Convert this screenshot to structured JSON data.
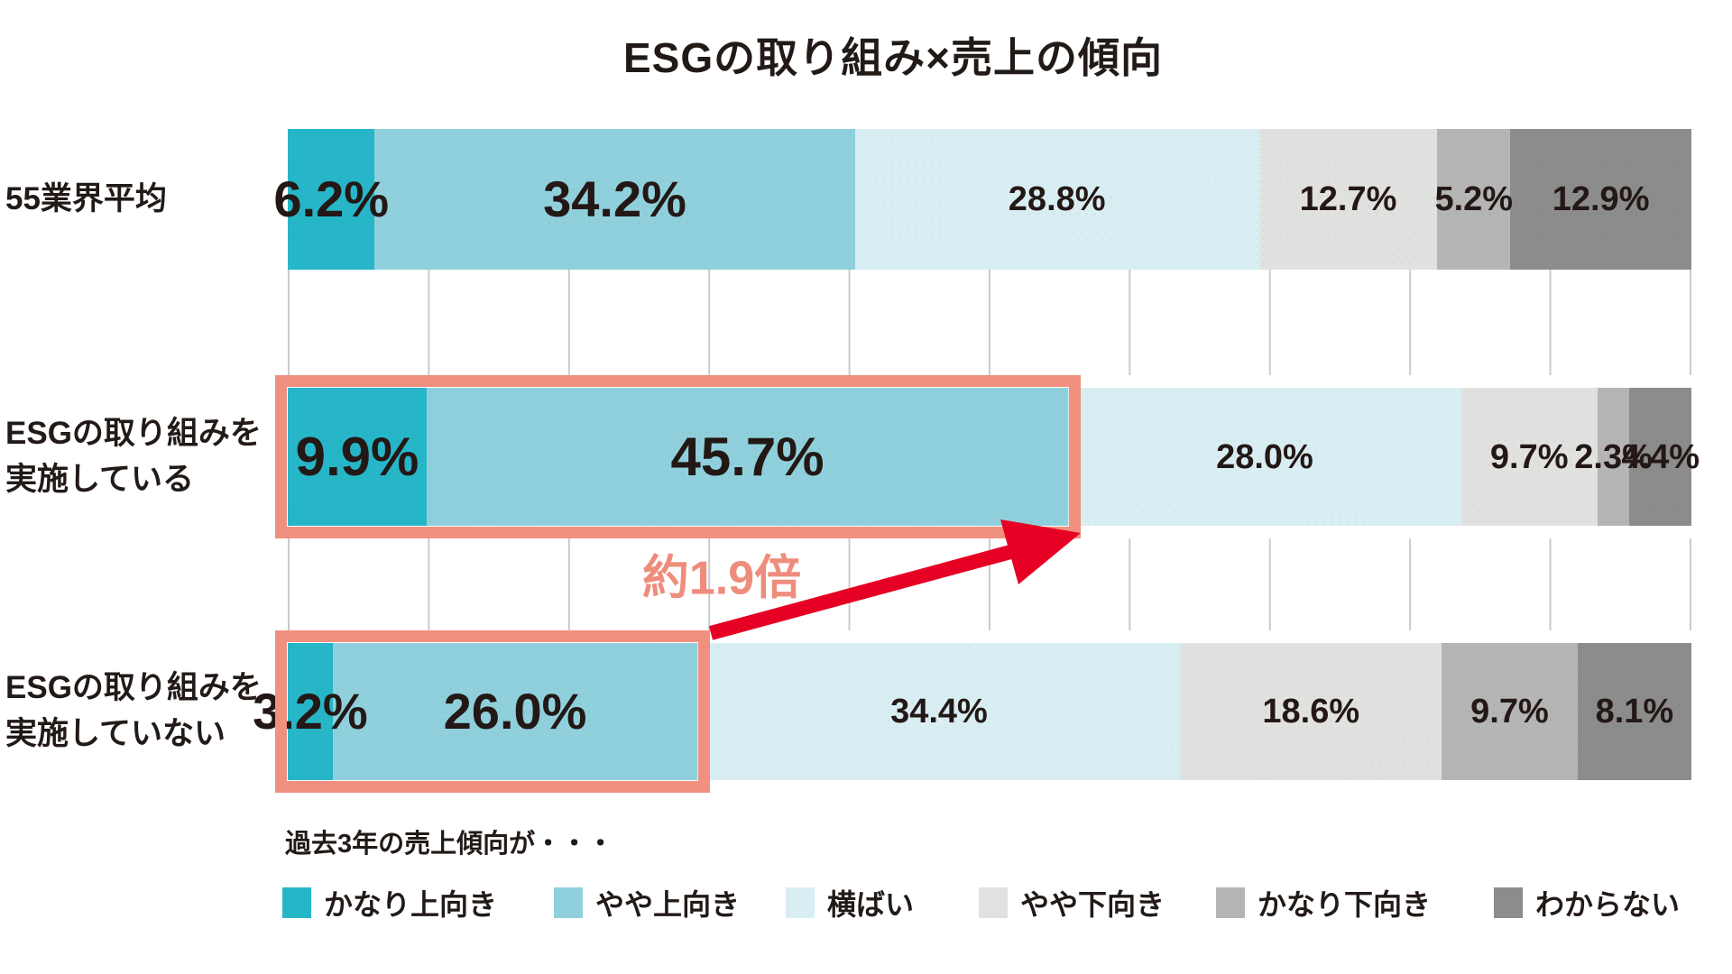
{
  "title": "ESGの取り組み×売上の傾向",
  "chart_data": {
    "type": "bar",
    "stacked": true,
    "orientation": "horizontal",
    "unit": "%",
    "xlim": [
      0,
      100
    ],
    "gridline_step_percent": 10,
    "legend_position": "bottom",
    "categories": [
      "55業界平均",
      "ESGの取り組みを実施している",
      "ESGの取り組みを実施していない"
    ],
    "series": [
      {
        "name": "かなり上向き",
        "color": "#26b6c8",
        "values": [
          6.2,
          9.9,
          3.2
        ]
      },
      {
        "name": "やや上向き",
        "color": "#8fd0dc",
        "values": [
          34.2,
          45.7,
          26.0
        ]
      },
      {
        "name": "横ばい",
        "color": "#d9eef3",
        "values": [
          28.8,
          28.0,
          34.4
        ]
      },
      {
        "name": "やや下向き",
        "color": "#e1e1e0",
        "values": [
          12.7,
          9.7,
          18.6
        ]
      },
      {
        "name": "かなり下向き",
        "color": "#b5b5b5",
        "values": [
          5.2,
          2.3,
          9.7
        ]
      },
      {
        "name": "わからない",
        "color": "#8c8c8c",
        "values": [
          12.9,
          4.4,
          8.1
        ]
      }
    ],
    "highlights": [
      {
        "category_index": 1,
        "segments_spanned": [
          0,
          1
        ],
        "border_color": "#f0907e"
      },
      {
        "category_index": 2,
        "segments_spanned": [
          0,
          1
        ],
        "border_color": "#f0907e"
      }
    ],
    "annotation": {
      "text": "約1.9倍",
      "arrow_color": "#e60023",
      "text_color": "#ee8d7c"
    }
  },
  "rows": [
    {
      "label_lines": [
        "55業界平均"
      ],
      "segments": [
        {
          "label": "6.2%"
        },
        {
          "label": "34.2%"
        },
        {
          "label": "28.8%"
        },
        {
          "label": "12.7%"
        },
        {
          "label": "5.2%"
        },
        {
          "label": "12.9%"
        }
      ]
    },
    {
      "label_lines": [
        "ESGの取り組みを",
        "実施している"
      ],
      "segments": [
        {
          "label": "9.9%"
        },
        {
          "label": "45.7%"
        },
        {
          "label": "28.0%"
        },
        {
          "label": "9.7%"
        },
        {
          "label": "2.3%"
        },
        {
          "label": "4.4%"
        }
      ]
    },
    {
      "label_lines": [
        "ESGの取り組みを",
        "実施していない"
      ],
      "segments": [
        {
          "label": "3.2%"
        },
        {
          "label": "26.0%"
        },
        {
          "label": "34.4%"
        },
        {
          "label": "18.6%"
        },
        {
          "label": "9.7%"
        },
        {
          "label": "8.1%"
        }
      ]
    }
  ],
  "annotation": {
    "label": "約1.9倍"
  },
  "legend": {
    "caption": "過去3年の売上傾向が・・・"
  }
}
